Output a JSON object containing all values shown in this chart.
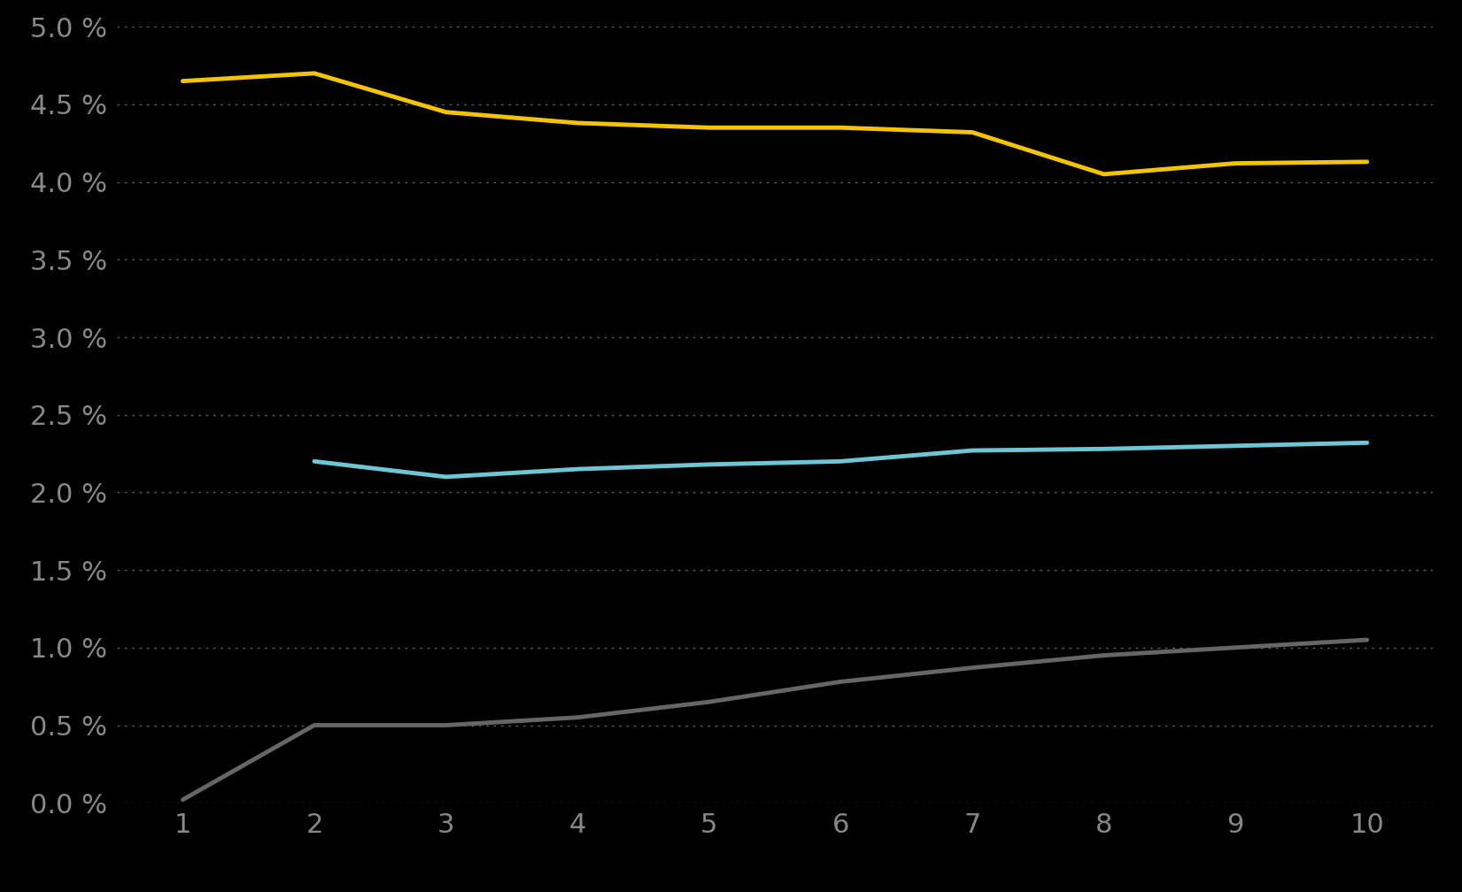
{
  "x": [
    1,
    2,
    3,
    4,
    5,
    6,
    7,
    8,
    9,
    10
  ],
  "yellow_line": [
    4.65,
    4.7,
    4.45,
    4.38,
    4.35,
    4.35,
    4.32,
    4.05,
    4.12,
    4.13
  ],
  "cyan_line": [
    null,
    2.2,
    2.1,
    2.15,
    2.18,
    2.2,
    2.27,
    2.28,
    2.3,
    2.32
  ],
  "gray_line": [
    0.02,
    0.5,
    0.5,
    0.55,
    0.65,
    0.78,
    0.87,
    0.95,
    1.0,
    1.05
  ],
  "yellow_color": "#F5C400",
  "cyan_color": "#6EC6D4",
  "gray_color": "#666666",
  "background_color": "#000000",
  "grid_color": "#666666",
  "tick_label_color": "#888888",
  "ylim": [
    0.0,
    5.0
  ],
  "xlim": [
    0.5,
    10.5
  ],
  "yticks": [
    0.0,
    0.5,
    1.0,
    1.5,
    2.0,
    2.5,
    3.0,
    3.5,
    4.0,
    4.5,
    5.0
  ],
  "xticks": [
    1,
    2,
    3,
    4,
    5,
    6,
    7,
    8,
    9,
    10
  ],
  "line_width": 3.5
}
